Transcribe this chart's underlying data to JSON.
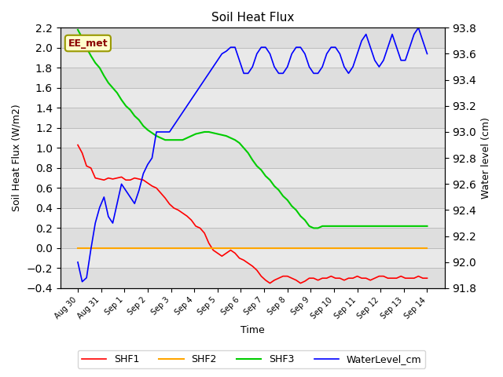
{
  "title": "Soil Heat Flux",
  "ylabel_left": "Soil Heat Flux (W/m2)",
  "ylabel_right": "Water level (cm)",
  "xlabel": "Time",
  "ylim_left": [
    -0.4,
    2.2
  ],
  "ylim_right": [
    91.8,
    93.8
  ],
  "yticks_left": [
    -0.4,
    -0.2,
    0.0,
    0.2,
    0.4,
    0.6,
    0.8,
    1.0,
    1.2,
    1.4,
    1.6,
    1.8,
    2.0,
    2.2
  ],
  "yticks_right": [
    91.8,
    92.0,
    92.2,
    92.4,
    92.6,
    92.8,
    93.0,
    93.2,
    93.4,
    93.6,
    93.8
  ],
  "xtick_labels": [
    "Aug 30",
    "Aug 31",
    "Sep 1",
    "Sep 2",
    "Sep 3",
    "Sep 4",
    "Sep 5",
    "Sep 6",
    "Sep 7",
    "Sep 8",
    "Sep 9",
    "Sep 10",
    "Sep 11",
    "Sep 12",
    "Sep 13",
    "Sep 14"
  ],
  "background_color": "#ffffff",
  "grid_color": "#cccccc",
  "annotation_text": "EE_met",
  "annotation_color": "#8B0000",
  "annotation_bg": "#ffffcc",
  "legend_entries": [
    "SHF1",
    "SHF2",
    "SHF3",
    "WaterLevel_cm"
  ],
  "line_colors": {
    "SHF1": "#ff0000",
    "SHF2": "#ffa500",
    "SHF3": "#00cc00",
    "WaterLevel_cm": "#0000ff"
  },
  "shf1": [
    1.03,
    0.95,
    0.82,
    0.8,
    0.7,
    0.69,
    0.68,
    0.7,
    0.69,
    0.7,
    0.71,
    0.68,
    0.68,
    0.7,
    0.69,
    0.68,
    0.65,
    0.62,
    0.6,
    0.55,
    0.5,
    0.44,
    0.4,
    0.38,
    0.35,
    0.32,
    0.28,
    0.22,
    0.2,
    0.15,
    0.05,
    -0.02,
    -0.05,
    -0.08,
    -0.05,
    -0.02,
    -0.05,
    -0.1,
    -0.12,
    -0.15,
    -0.18,
    -0.22,
    -0.28,
    -0.32,
    -0.35,
    -0.32,
    -0.3,
    -0.28,
    -0.28,
    -0.3,
    -0.32,
    -0.35,
    -0.33,
    -0.3,
    -0.3,
    -0.32,
    -0.3,
    -0.3,
    -0.28,
    -0.3,
    -0.3,
    -0.32,
    -0.3,
    -0.3,
    -0.28,
    -0.3,
    -0.3,
    -0.32,
    -0.3,
    -0.28,
    -0.28,
    -0.3,
    -0.3,
    -0.3,
    -0.28,
    -0.3,
    -0.3,
    -0.3,
    -0.28,
    -0.3,
    -0.3
  ],
  "shf2": [
    0.0,
    0.0,
    0.0,
    0.0,
    0.0,
    0.0,
    0.0,
    0.0,
    0.0,
    0.0,
    0.0,
    0.0,
    0.0,
    0.0,
    0.0,
    0.0,
    0.0,
    0.0,
    0.0,
    0.0,
    0.0,
    0.0,
    0.0,
    0.0,
    0.0,
    0.0,
    0.0,
    0.0,
    0.0,
    0.0,
    0.0,
    0.0,
    0.0,
    0.0,
    0.0,
    0.0,
    0.0,
    0.0,
    0.0,
    0.0,
    0.0,
    0.0,
    0.0,
    0.0,
    0.0,
    0.0,
    0.0,
    0.0,
    0.0,
    0.0,
    0.0,
    0.0,
    0.0,
    0.0,
    0.0,
    0.0,
    0.0,
    0.0,
    0.0,
    0.0,
    0.0,
    0.0,
    0.0,
    0.0,
    0.0,
    0.0,
    0.0,
    0.0,
    0.0,
    0.0,
    0.0,
    0.0,
    0.0,
    0.0,
    0.0,
    0.0,
    0.0,
    0.0,
    0.0,
    0.0,
    0.0
  ],
  "shf3": [
    2.18,
    2.1,
    2.0,
    1.92,
    1.85,
    1.8,
    1.72,
    1.65,
    1.6,
    1.55,
    1.48,
    1.42,
    1.38,
    1.32,
    1.28,
    1.22,
    1.18,
    1.15,
    1.12,
    1.1,
    1.08,
    1.08,
    1.08,
    1.08,
    1.08,
    1.1,
    1.12,
    1.14,
    1.15,
    1.16,
    1.16,
    1.15,
    1.14,
    1.13,
    1.12,
    1.1,
    1.08,
    1.05,
    1.0,
    0.95,
    0.88,
    0.82,
    0.78,
    0.72,
    0.68,
    0.62,
    0.58,
    0.52,
    0.48,
    0.42,
    0.38,
    0.32,
    0.28,
    0.22,
    0.2,
    0.2,
    0.22,
    0.22,
    0.22,
    0.22,
    0.22,
    0.22,
    0.22,
    0.22,
    0.22,
    0.22,
    0.22,
    0.22,
    0.22,
    0.22,
    0.22,
    0.22,
    0.22,
    0.22,
    0.22,
    0.22,
    0.22,
    0.22,
    0.22,
    0.22,
    0.22
  ],
  "water_level_raw": [
    92.0,
    91.85,
    91.88,
    92.1,
    92.3,
    92.42,
    92.5,
    92.35,
    92.3,
    92.45,
    92.6,
    92.55,
    92.5,
    92.45,
    92.55,
    92.68,
    92.75,
    92.8,
    93.0,
    93.0,
    93.0,
    93.0,
    93.05,
    93.1,
    93.15,
    93.2,
    93.25,
    93.3,
    93.35,
    93.4,
    93.45,
    93.5,
    93.55,
    93.6,
    93.62,
    93.65,
    93.65,
    93.55,
    93.45,
    93.45,
    93.5,
    93.6,
    93.65,
    93.65,
    93.6,
    93.5,
    93.45,
    93.45,
    93.5,
    93.6,
    93.65,
    93.65,
    93.6,
    93.5,
    93.45,
    93.45,
    93.5,
    93.6,
    93.65,
    93.65,
    93.6,
    93.5,
    93.45,
    93.5,
    93.6,
    93.7,
    93.75,
    93.65,
    93.55,
    93.5,
    93.55,
    93.65,
    93.75,
    93.65,
    93.55,
    93.55,
    93.65,
    93.75,
    93.8,
    93.7,
    93.6
  ]
}
